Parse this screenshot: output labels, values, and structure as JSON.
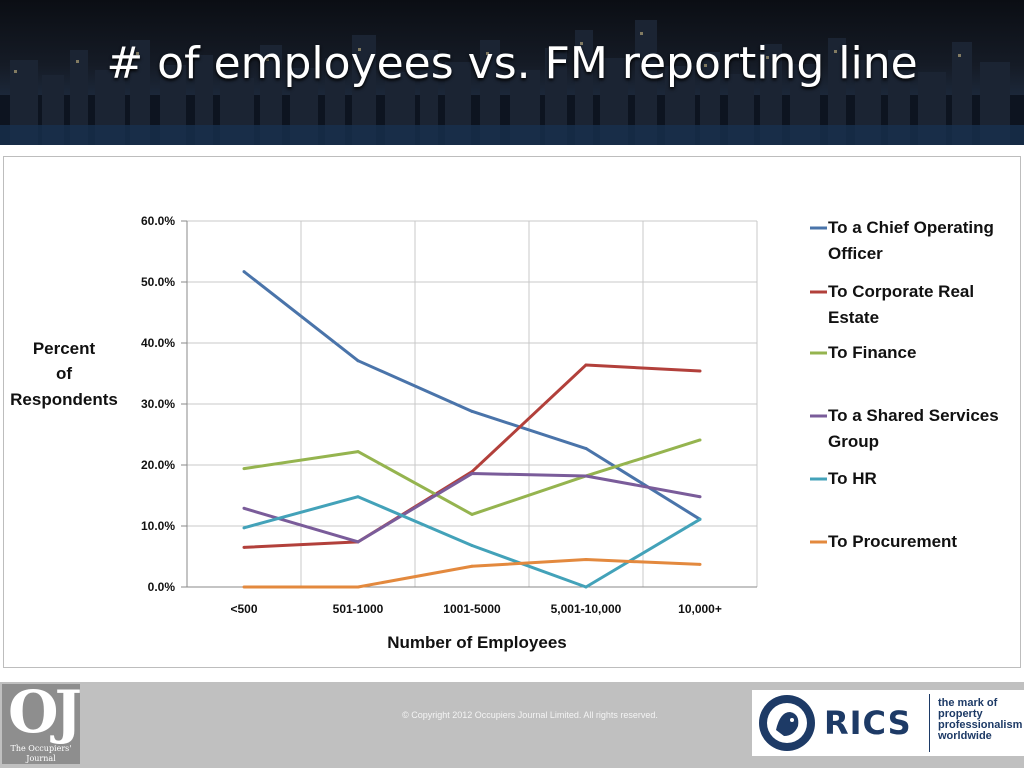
{
  "slide": {
    "title": "# of employees vs. FM reporting line"
  },
  "footer": {
    "copyright": "© Copyright 2012 Occupiers Journal Limited. All rights reserved.",
    "oj_logo_letters": "OJ",
    "oj_logo_name": "The Occupiers' Journal",
    "rics_name": "RICS",
    "rics_tagline": "the mark of\nproperty\nprofessionalism\nworldwide"
  },
  "chart_data": {
    "type": "line",
    "title": "",
    "xlabel": "Number of Employees",
    "ylabel": "Percent of Respondents",
    "ylabel_lines": [
      "Percent",
      "of",
      "Respondents"
    ],
    "categories": [
      "<500",
      "501-1000",
      "1001-5000",
      "5,001-10,000",
      "10,000+"
    ],
    "ylim": [
      0,
      60
    ],
    "yticks": [
      "0.0%",
      "10.0%",
      "20.0%",
      "30.0%",
      "40.0%",
      "50.0%",
      "60.0%"
    ],
    "grid": true,
    "legend_position": "right",
    "series": [
      {
        "name": "To a Chief Operating Officer",
        "legend_lines": [
          "To a Chief Operating",
          "Officer"
        ],
        "color": "#4a74aa",
        "values": [
          51.7,
          37.1,
          28.8,
          22.7,
          11.1
        ]
      },
      {
        "name": "To Corporate Real Estate",
        "legend_lines": [
          "To Corporate Real",
          "Estate"
        ],
        "color": "#b2403b",
        "values": [
          6.5,
          7.4,
          18.9,
          36.4,
          35.4
        ]
      },
      {
        "name": "To Finance",
        "legend_lines": [
          "To Finance"
        ],
        "color": "#95b44f",
        "values": [
          19.4,
          22.2,
          11.9,
          18.2,
          24.1
        ]
      },
      {
        "name": "To a Shared Services Group",
        "legend_lines": [
          "To a Shared Services",
          "Group"
        ],
        "color": "#7a5c9a",
        "values": [
          12.9,
          7.4,
          18.6,
          18.2,
          14.8
        ]
      },
      {
        "name": "To HR",
        "legend_lines": [
          "To HR"
        ],
        "color": "#43a2b9",
        "values": [
          9.7,
          14.8,
          6.8,
          0.0,
          11.1
        ]
      },
      {
        "name": "To Procurement",
        "legend_lines": [
          "To Procurement"
        ],
        "color": "#e3893e",
        "values": [
          0.0,
          0.0,
          3.4,
          4.5,
          3.7
        ]
      }
    ]
  }
}
